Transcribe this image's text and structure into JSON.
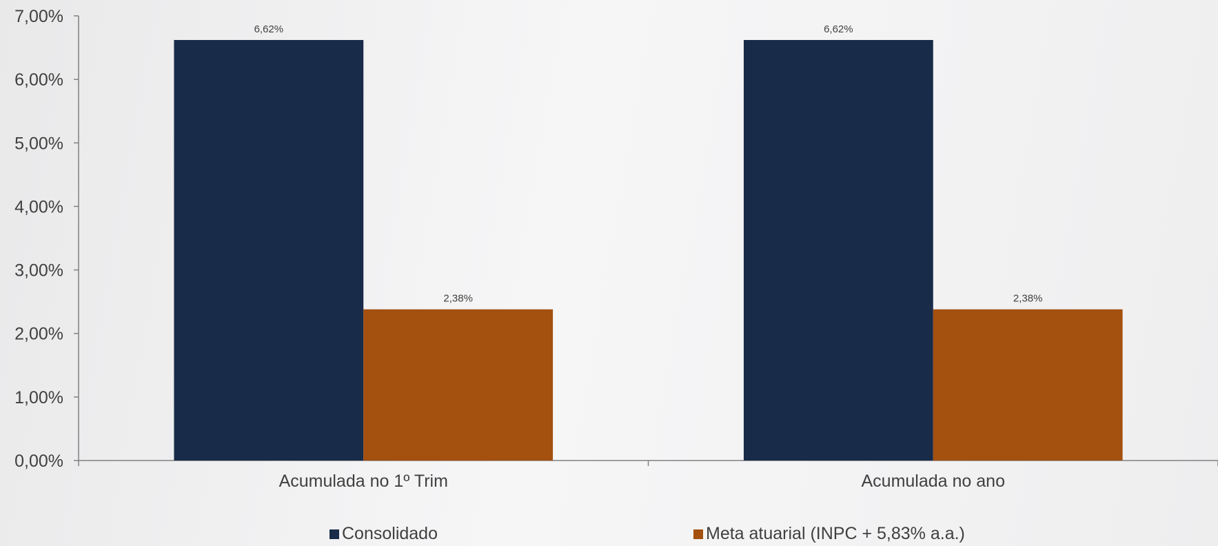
{
  "chart_data": {
    "type": "bar",
    "categories": [
      "Acumulada no 1º Trim",
      "Acumulada no ano"
    ],
    "series": [
      {
        "name": "Consolidado",
        "values": [
          6.62,
          6.62
        ],
        "labels": [
          "6,62%",
          "6,62%"
        ],
        "color": "#182b48"
      },
      {
        "name": "Meta atuarial (INPC + 5,83% a.a.)",
        "values": [
          2.38,
          2.38
        ],
        "labels": [
          "2,38%",
          "2,38%"
        ],
        "color": "#a4500e"
      }
    ],
    "yticks": [
      "0,00%",
      "1,00%",
      "2,00%",
      "3,00%",
      "4,00%",
      "5,00%",
      "6,00%",
      "7,00%"
    ],
    "ylim": [
      0,
      7
    ],
    "legend_position": "bottom",
    "grid": false
  }
}
